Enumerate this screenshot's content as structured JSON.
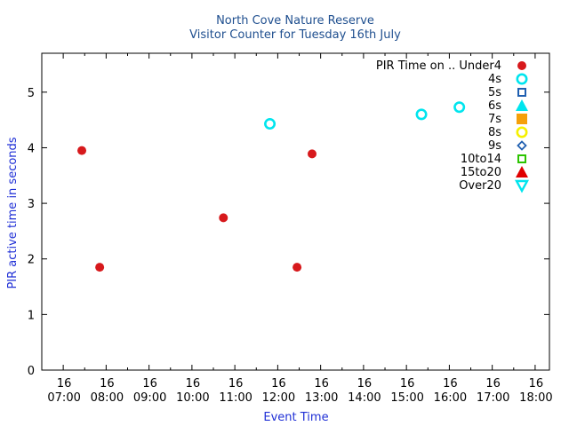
{
  "chart_data": {
    "type": "scatter",
    "title": "North Cove Nature Reserve",
    "subtitle": "Visitor Counter for Tuesday 16th July",
    "xlabel": "Event Time",
    "ylabel": "PIR active time in seconds",
    "ylim": [
      0,
      5.7
    ],
    "yticks": [
      0,
      1,
      2,
      3,
      4,
      5
    ],
    "xlim": [
      "16 06:30",
      "16 18:20"
    ],
    "xtick_top": [
      "16",
      "16",
      "16",
      "16",
      "16",
      "16",
      "16",
      "16",
      "16",
      "16",
      "16",
      "16"
    ],
    "xtick_bottom": [
      "07:00",
      "08:00",
      "09:00",
      "10:00",
      "11:00",
      "12:00",
      "13:00",
      "14:00",
      "15:00",
      "16:00",
      "17:00",
      "18:00"
    ],
    "grid": false,
    "legend_position": "top-right",
    "legend_title": "PIR Time on ..",
    "series": [
      {
        "name": "Under4",
        "marker": "filled-circle",
        "color": "#d7191c",
        "points": [
          {
            "x": "16 07:26",
            "y": 3.95
          },
          {
            "x": "16 07:51",
            "y": 1.85
          },
          {
            "x": "16 10:44",
            "y": 2.74
          },
          {
            "x": "16 12:27",
            "y": 1.85
          },
          {
            "x": "16 12:48",
            "y": 3.89
          }
        ]
      },
      {
        "name": "4s",
        "marker": "open-circle",
        "color": "#00e5ee",
        "points": [
          {
            "x": "16 11:49",
            "y": 4.43
          },
          {
            "x": "16 15:21",
            "y": 4.6
          },
          {
            "x": "16 16:14",
            "y": 4.73
          }
        ]
      },
      {
        "name": "5s",
        "marker": "open-square",
        "color": "#1f5fb0",
        "points": []
      },
      {
        "name": "6s",
        "marker": "filled-triangle",
        "color": "#00e5ee",
        "points": []
      },
      {
        "name": "7s",
        "marker": "filled-square",
        "color": "#f5a00a",
        "points": []
      },
      {
        "name": "8s",
        "marker": "open-circle",
        "color": "#f5f000",
        "points": []
      },
      {
        "name": "9s",
        "marker": "open-diamond",
        "color": "#1f5fb0",
        "points": []
      },
      {
        "name": "10to14",
        "marker": "open-square",
        "color": "#2cc400",
        "points": []
      },
      {
        "name": "15to20",
        "marker": "filled-triangle",
        "color": "#e00000",
        "points": []
      },
      {
        "name": "Over20",
        "marker": "open-triangle-down",
        "color": "#00e5ee",
        "points": []
      }
    ]
  }
}
